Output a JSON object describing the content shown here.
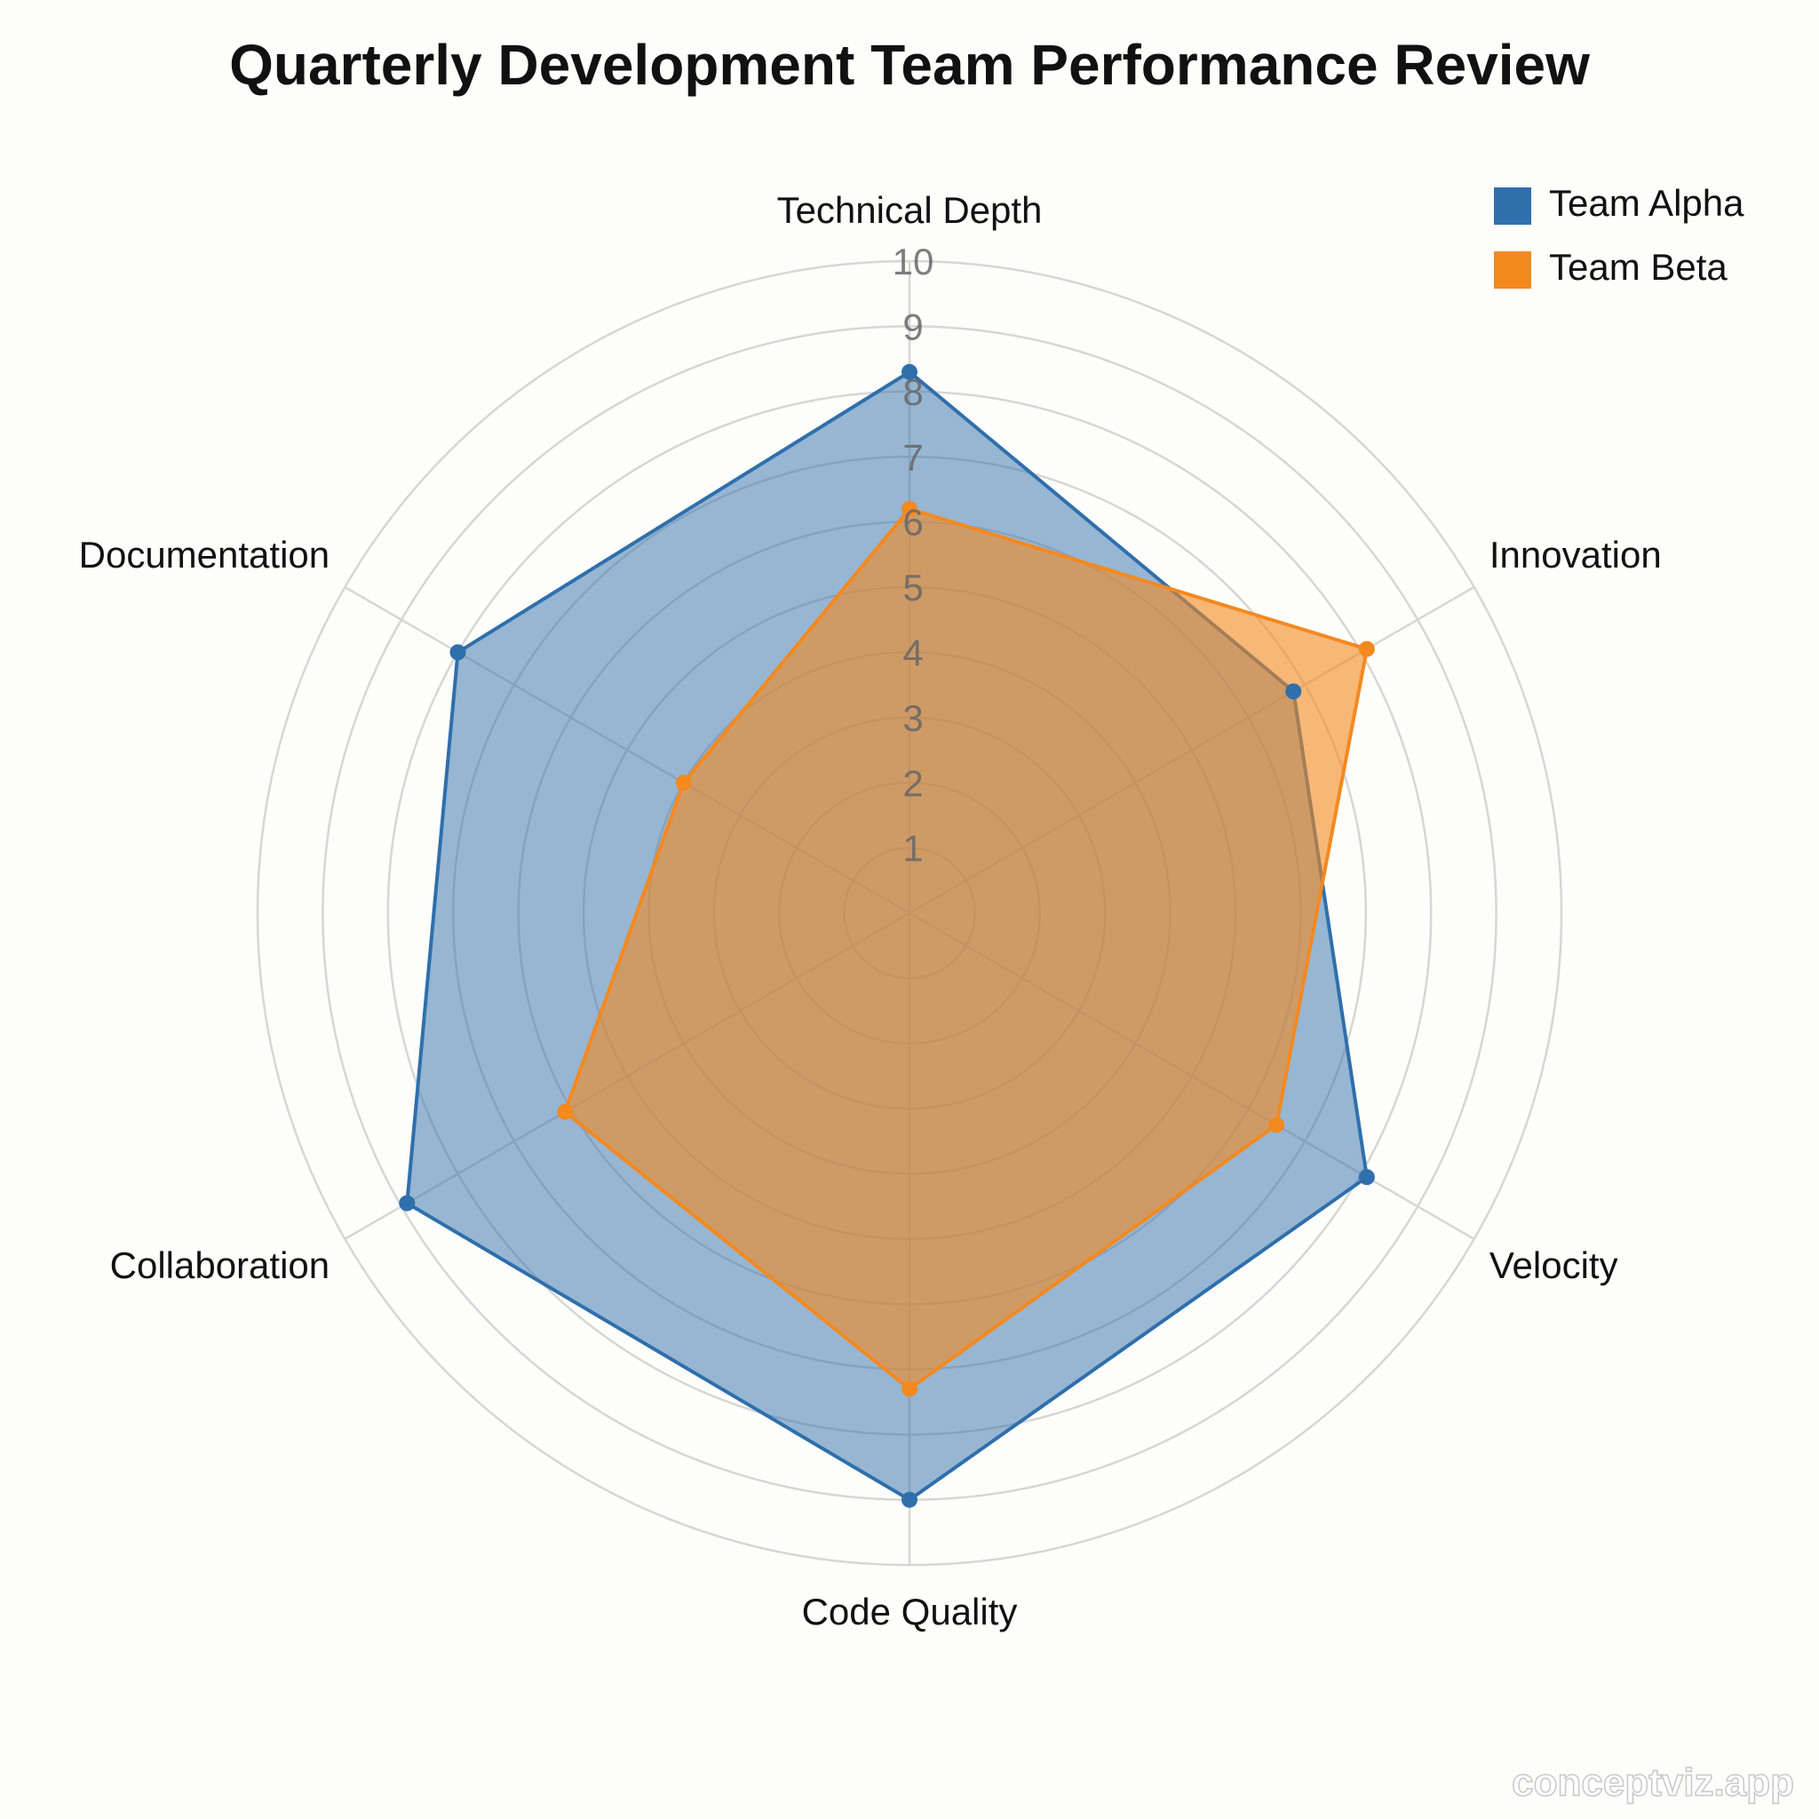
{
  "chart_data": {
    "type": "radar",
    "title": "Quarterly Development Team Performance Review",
    "categories": [
      "Technical Depth",
      "Innovation",
      "Velocity",
      "Code Quality",
      "Collaboration",
      "Documentation"
    ],
    "series": [
      {
        "name": "Team Alpha",
        "color": "#2f6fab",
        "values": [
          8.3,
          6.8,
          8.1,
          9.0,
          8.9,
          8.0
        ]
      },
      {
        "name": "Team Beta",
        "color": "#f4891f",
        "values": [
          6.2,
          8.1,
          6.5,
          7.3,
          6.1,
          4.0
        ]
      }
    ],
    "rlim": [
      0,
      10
    ],
    "rticks": [
      1,
      2,
      3,
      4,
      5,
      6,
      7,
      8,
      9,
      10
    ],
    "grid": true,
    "legend": "upper right",
    "watermark": "conceptviz.app"
  }
}
